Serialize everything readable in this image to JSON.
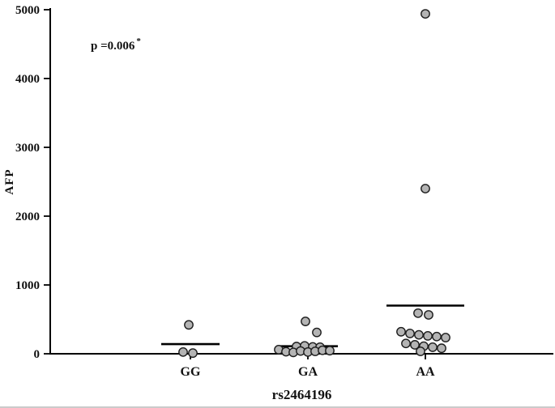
{
  "figure": {
    "background": "#ffffff",
    "axis_color": "#000000",
    "border_color": "#cbcbcb"
  },
  "chart_data": {
    "type": "scatter",
    "title": "",
    "xlabel": "rs2464196",
    "ylabel": "AFP",
    "annotation": "p =0.006",
    "annotation_superscript": "*",
    "ylim": [
      0,
      5000
    ],
    "yticks": [
      0,
      1000,
      2000,
      3000,
      4000,
      5000
    ],
    "categories": [
      "GG",
      "GA",
      "AA"
    ],
    "grid": false,
    "legend": "none",
    "point_fill": "#b4b4b4",
    "point_stroke": "#1c1c1c",
    "groups": [
      {
        "label": "GG",
        "mean": 140,
        "mean_halfwidth": 36,
        "points": [
          [
            420,
            -2
          ],
          [
            25,
            -9
          ],
          [
            10,
            3
          ]
        ]
      },
      {
        "label": "GA",
        "mean": 110,
        "mean_halfwidth": 37,
        "points": [
          [
            470,
            -3
          ],
          [
            310,
            11
          ],
          [
            105,
            -14
          ],
          [
            115,
            -4
          ],
          [
            100,
            6
          ],
          [
            95,
            15
          ],
          [
            60,
            -36
          ],
          [
            30,
            -27
          ],
          [
            20,
            -18
          ],
          [
            40,
            -9
          ],
          [
            25,
            0
          ],
          [
            35,
            9
          ],
          [
            50,
            18
          ],
          [
            45,
            27
          ]
        ]
      },
      {
        "label": "AA",
        "mean": 700,
        "mean_halfwidth": 48,
        "points": [
          [
            4940,
            0
          ],
          [
            2400,
            0
          ],
          [
            590,
            -9
          ],
          [
            565,
            4
          ],
          [
            320,
            -30
          ],
          [
            295,
            -19
          ],
          [
            275,
            -8
          ],
          [
            260,
            3
          ],
          [
            250,
            14
          ],
          [
            235,
            25
          ],
          [
            150,
            -24
          ],
          [
            130,
            -13
          ],
          [
            110,
            -2
          ],
          [
            95,
            9
          ],
          [
            80,
            20
          ],
          [
            35,
            -6
          ]
        ]
      }
    ]
  }
}
